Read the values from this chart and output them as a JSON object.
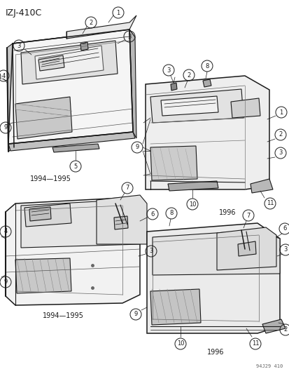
{
  "title_code": "IZJ-410C",
  "bg_color": "#ffffff",
  "diagram_color": "#1a1a1a",
  "gray_fill": "#d4d4d4",
  "light_fill": "#e8e8e8",
  "mid_gray": "#777777",
  "copyright": "94J29 410",
  "year_tl": "1994—1995",
  "year_tr": "1996",
  "year_bl": "1994—1995",
  "year_br": "1996",
  "figure_width": 4.14,
  "figure_height": 5.33,
  "dpi": 100
}
